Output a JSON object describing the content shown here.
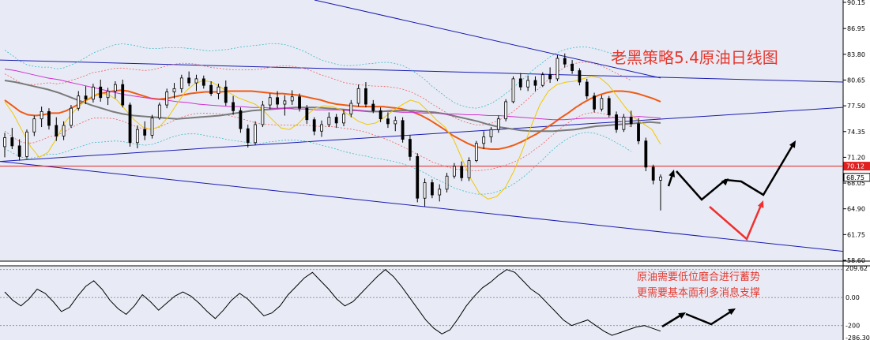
{
  "title": "老黑策略5.4原油日线图",
  "annotations": [
    "原油需要低位磨合进行蓄势",
    "更需要基本面利多消息支撑"
  ],
  "colors": {
    "background": "#e8ebf5",
    "price_level_line": "#e02020",
    "trend_lines": "#1a1ab0",
    "bull_candle": "#ffffff",
    "bear_candle": "#000000",
    "ma_orange": "#f05a14",
    "ma_gray": "#7a7a7a",
    "ma_magenta": "#d030d0",
    "ma_yellow": "#f0c800",
    "bands_red": "#f06060",
    "bands_cyan": "#40b8c8",
    "arrows_black": "#000000",
    "arrows_red": "#f03030",
    "annotation_red": "#e6382e"
  },
  "chart_data": [
    {
      "type": "candlestick",
      "title": "老黑策略5.4原油日线图",
      "ylim": [
        58.6,
        90.15
      ],
      "y_tick_labels": [
        "90.15",
        "86.95",
        "83.80",
        "80.65",
        "77.50",
        "74.35",
        "71.20",
        "68.05",
        "64.90",
        "61.75",
        "58.60"
      ],
      "price_tags": [
        {
          "label": "70.12",
          "value": 70.12,
          "bg": "#e02020",
          "fg": "#ffffff"
        },
        {
          "label": "68.75",
          "value": 68.75,
          "bg": "#ffffff",
          "fg": "#000000"
        }
      ],
      "horizontal_line": 70.12,
      "candles": [
        [
          72.5,
          74.2,
          71.2,
          73.6
        ],
        [
          73.6,
          74.8,
          72.2,
          72.6
        ],
        [
          72.6,
          73.4,
          70.8,
          71.3
        ],
        [
          71.3,
          74.6,
          71.0,
          74.3
        ],
        [
          74.3,
          76.3,
          73.8,
          75.9
        ],
        [
          75.9,
          77.4,
          74.9,
          76.8
        ],
        [
          76.8,
          77.2,
          74.6,
          75.1
        ],
        [
          75.1,
          76.1,
          73.2,
          73.8
        ],
        [
          73.8,
          75.6,
          73.3,
          75.1
        ],
        [
          75.1,
          77.6,
          74.8,
          77.2
        ],
        [
          77.2,
          79.3,
          76.9,
          78.7
        ],
        [
          78.7,
          79.9,
          77.7,
          78.3
        ],
        [
          78.3,
          80.2,
          77.9,
          79.8
        ],
        [
          79.8,
          80.7,
          78.0,
          78.5
        ],
        [
          78.5,
          79.7,
          77.6,
          79.3
        ],
        [
          79.3,
          80.5,
          78.4,
          80.1
        ],
        [
          80.1,
          80.7,
          77.3,
          77.6
        ],
        [
          77.6,
          77.9,
          72.5,
          73.0
        ],
        [
          73.0,
          75.1,
          72.3,
          74.6
        ],
        [
          74.6,
          75.6,
          73.3,
          73.9
        ],
        [
          73.9,
          76.4,
          73.5,
          76.0
        ],
        [
          76.0,
          77.9,
          75.8,
          77.6
        ],
        [
          77.6,
          79.6,
          77.2,
          79.2
        ],
        [
          79.2,
          80.3,
          78.4,
          79.6
        ],
        [
          79.6,
          81.3,
          79.1,
          80.9
        ],
        [
          80.9,
          81.7,
          79.9,
          80.3
        ],
        [
          80.3,
          81.3,
          79.3,
          80.8
        ],
        [
          80.8,
          81.2,
          79.6,
          80.0
        ],
        [
          80.0,
          80.5,
          78.7,
          79.0
        ],
        [
          79.0,
          80.2,
          78.3,
          79.8
        ],
        [
          79.8,
          80.6,
          77.5,
          77.9
        ],
        [
          77.9,
          78.7,
          76.4,
          76.9
        ],
        [
          76.9,
          77.3,
          74.2,
          74.7
        ],
        [
          74.7,
          75.2,
          72.4,
          73.0
        ],
        [
          73.0,
          75.6,
          72.7,
          75.2
        ],
        [
          75.2,
          78.1,
          74.9,
          77.6
        ],
        [
          77.6,
          79.0,
          77.1,
          78.5
        ],
        [
          78.5,
          79.3,
          77.2,
          77.7
        ],
        [
          77.7,
          78.8,
          76.3,
          78.1
        ],
        [
          78.1,
          79.4,
          77.6,
          78.6
        ],
        [
          78.6,
          79.0,
          76.8,
          77.2
        ],
        [
          77.2,
          77.6,
          75.3,
          75.8
        ],
        [
          75.8,
          76.1,
          73.9,
          74.4
        ],
        [
          74.4,
          75.7,
          73.7,
          75.2
        ],
        [
          75.2,
          76.7,
          74.9,
          76.1
        ],
        [
          76.1,
          76.5,
          74.8,
          75.4
        ],
        [
          75.4,
          77.0,
          75.0,
          76.5
        ],
        [
          76.5,
          78.2,
          76.1,
          77.8
        ],
        [
          77.8,
          80.1,
          77.4,
          79.6
        ],
        [
          79.6,
          80.4,
          77.3,
          77.7
        ],
        [
          77.7,
          78.2,
          76.6,
          76.9
        ],
        [
          76.9,
          77.3,
          75.5,
          75.9
        ],
        [
          75.9,
          76.7,
          74.8,
          75.3
        ],
        [
          75.3,
          76.2,
          74.4,
          75.7
        ],
        [
          75.7,
          76.1,
          73.0,
          73.4
        ],
        [
          73.4,
          73.9,
          70.8,
          71.3
        ],
        [
          71.3,
          71.7,
          65.7,
          66.2
        ],
        [
          66.2,
          68.6,
          65.2,
          68.1
        ],
        [
          68.1,
          68.5,
          66.2,
          66.6
        ],
        [
          66.6,
          67.9,
          65.8,
          67.3
        ],
        [
          67.3,
          69.3,
          66.9,
          68.9
        ],
        [
          68.9,
          70.5,
          68.6,
          70.1
        ],
        [
          70.1,
          70.7,
          68.3,
          68.7
        ],
        [
          68.7,
          71.2,
          68.3,
          70.8
        ],
        [
          70.8,
          73.2,
          70.6,
          72.9
        ],
        [
          72.9,
          74.4,
          72.2,
          73.7
        ],
        [
          73.7,
          74.9,
          73.0,
          74.6
        ],
        [
          74.6,
          76.3,
          74.2,
          75.9
        ],
        [
          75.9,
          78.3,
          75.6,
          78.0
        ],
        [
          78.0,
          81.1,
          77.8,
          80.8
        ],
        [
          80.8,
          81.5,
          79.4,
          79.8
        ],
        [
          79.8,
          81.2,
          79.3,
          80.6
        ],
        [
          80.6,
          81.1,
          79.3,
          80.0
        ],
        [
          80.0,
          81.6,
          79.8,
          81.3
        ],
        [
          81.3,
          82.2,
          80.3,
          80.8
        ],
        [
          80.8,
          83.7,
          80.5,
          83.3
        ],
        [
          83.3,
          83.9,
          82.2,
          82.6
        ],
        [
          82.6,
          83.1,
          81.4,
          81.8
        ],
        [
          81.8,
          82.1,
          80.0,
          80.4
        ],
        [
          80.4,
          80.8,
          78.3,
          78.7
        ],
        [
          78.7,
          79.1,
          76.7,
          77.1
        ],
        [
          77.1,
          78.8,
          76.8,
          78.4
        ],
        [
          78.4,
          78.7,
          76.1,
          76.4
        ],
        [
          76.4,
          76.8,
          74.2,
          74.6
        ],
        [
          74.6,
          76.5,
          74.3,
          76.1
        ],
        [
          76.1,
          76.9,
          74.9,
          75.3
        ],
        [
          75.3,
          76.0,
          72.8,
          73.2
        ],
        [
          73.2,
          73.6,
          69.5,
          70.0
        ],
        [
          70.0,
          70.3,
          67.9,
          68.4
        ],
        [
          68.4,
          69.1,
          64.7,
          68.8
        ]
      ],
      "overlay_series": [
        {
          "color": "#f05a14",
          "values": [
            78.2,
            77.5,
            76.8,
            76.4,
            76.3,
            76.4,
            76.6,
            76.6,
            76.9,
            77.4,
            77.9,
            78.4,
            78.9,
            79.1,
            79.3,
            79.4,
            79.3,
            79.0,
            78.7,
            78.4,
            78.3,
            78.4,
            78.6,
            78.8,
            79.0,
            79.1,
            79.2,
            79.2,
            79.2,
            79.3,
            79.3,
            79.3,
            79.3,
            79.2,
            79.1,
            79.0,
            79.0,
            78.9,
            78.8,
            78.6,
            78.4,
            78.2,
            77.9,
            77.7,
            77.6,
            77.5,
            77.4,
            77.4,
            77.4,
            77.4,
            77.3,
            77.2,
            77.0,
            76.7,
            76.3,
            75.8,
            75.2,
            74.6,
            73.9,
            73.4,
            72.9,
            72.5,
            72.3,
            72.2,
            72.2,
            72.4,
            72.7,
            73.1,
            73.6,
            74.1,
            74.7,
            75.3,
            76.0,
            76.6,
            77.3,
            77.9,
            78.4,
            78.8,
            79.1,
            79.3,
            79.3,
            79.2,
            79.0,
            78.7,
            78.4,
            78.0
          ]
        },
        {
          "color": "#7a7a7a",
          "values": [
            80.6,
            80.4,
            80.1,
            79.8,
            79.5,
            79.1,
            78.6,
            78.1,
            77.6,
            77.2,
            76.8,
            76.5,
            76.3,
            76.2,
            76.1,
            76.0,
            75.9,
            76.0,
            76.1,
            76.2,
            76.3,
            76.5,
            76.7,
            76.9,
            77.0,
            77.1,
            77.2,
            77.3,
            77.3,
            77.3,
            77.2,
            77.1,
            77.0,
            76.9,
            76.8,
            76.8,
            76.9,
            76.9,
            76.9,
            76.8,
            76.7,
            76.5,
            76.2,
            75.9,
            75.6,
            75.2,
            74.9,
            74.7,
            74.5,
            74.4,
            74.4,
            74.4,
            74.5,
            74.6,
            74.8,
            75.0,
            75.1,
            75.2,
            75.3,
            75.4,
            75.5,
            75.4
          ]
        },
        {
          "color": "#d030d0",
          "values": [
            82.0,
            81.8,
            81.5,
            81.2,
            80.9,
            80.7,
            80.4,
            80.1,
            79.8,
            79.5,
            79.2,
            78.9,
            78.7,
            78.5,
            78.3,
            78.2,
            78.0,
            77.9,
            77.7,
            77.6,
            77.5,
            77.4,
            77.4,
            77.3,
            77.3,
            77.2,
            77.2,
            77.1,
            77.1,
            77.0,
            77.0,
            77.0,
            76.9,
            76.9,
            76.8,
            76.8,
            76.8,
            76.7,
            76.7,
            76.6,
            76.6,
            76.5,
            76.5,
            76.4,
            76.4,
            76.3,
            76.3,
            76.2,
            76.1,
            76.0,
            75.9,
            75.8,
            75.8,
            75.9,
            76.0,
            76.0,
            76.0,
            76.1,
            76.1,
            76.2,
            76.1,
            76.0
          ]
        },
        {
          "color": "#f0c800",
          "values": [
            78.0,
            76.5,
            74.5,
            72.5,
            71.2,
            71.8,
            73.5,
            75.5,
            76.8,
            77.8,
            78.6,
            79.0,
            78.9,
            78.2,
            77.0,
            75.8,
            74.9,
            74.6,
            75.0,
            76.2,
            77.8,
            79.3,
            80.2,
            80.6,
            80.4,
            79.8,
            79.1,
            78.5,
            78.1,
            77.7,
            76.9,
            75.8,
            74.8,
            74.6,
            75.3,
            76.4,
            77.2,
            77.5,
            77.4,
            77.0,
            76.3,
            75.6,
            75.2,
            75.4,
            76.1,
            76.9,
            77.6,
            78.2,
            77.9,
            76.9,
            75.8,
            74.9,
            73.4,
            71.0,
            68.6,
            66.8,
            66.1,
            66.4,
            67.5,
            69.5,
            72.1,
            75.0,
            77.6,
            79.3,
            80.1,
            80.4,
            80.5,
            80.8,
            81.1,
            80.9,
            80.0,
            78.6,
            77.2,
            76.0,
            75.3,
            74.6,
            72.8
          ]
        }
      ],
      "oscillator": {
        "y_tick_labels": [
          "209.62",
          "0.00",
          "-200",
          "-286.30"
        ],
        "ylim": [
          -286.3,
          209.62
        ],
        "values": [
          40,
          -20,
          -60,
          -10,
          60,
          30,
          -30,
          -100,
          -70,
          10,
          80,
          120,
          60,
          -20,
          -80,
          -120,
          -60,
          20,
          -30,
          -90,
          -40,
          10,
          40,
          10,
          -40,
          -100,
          -150,
          -90,
          -20,
          30,
          -10,
          -70,
          -130,
          -110,
          -60,
          20,
          80,
          140,
          180,
          120,
          60,
          -10,
          -60,
          -30,
          30,
          90,
          150,
          200,
          150,
          80,
          0,
          -80,
          -160,
          -220,
          -260,
          -230,
          -150,
          -60,
          10,
          70,
          110,
          160,
          200,
          180,
          120,
          60,
          20,
          -40,
          -100,
          -160,
          -200,
          -180,
          -160,
          -200,
          -240,
          -270,
          -250,
          -230,
          -210,
          -200,
          -220,
          -240
        ]
      }
    }
  ]
}
